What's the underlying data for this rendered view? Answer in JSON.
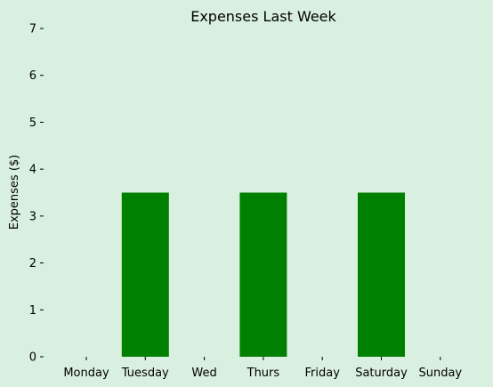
{
  "chart_data": {
    "type": "bar",
    "title": "Expenses Last Week",
    "xlabel": "",
    "ylabel": "Expenses ($)",
    "categories": [
      "Monday",
      "Tuesday",
      "Wed",
      "Thurs",
      "Friday",
      "Saturday",
      "Sunday"
    ],
    "values": [
      0,
      3.5,
      0,
      3.5,
      0,
      3.5,
      0
    ],
    "ylim": [
      0,
      7
    ],
    "yticks": [
      0,
      1,
      2,
      3,
      4,
      5,
      6,
      7
    ],
    "grid": false,
    "colors": {
      "bar": "#008000",
      "background": "#d9f0e0"
    }
  }
}
